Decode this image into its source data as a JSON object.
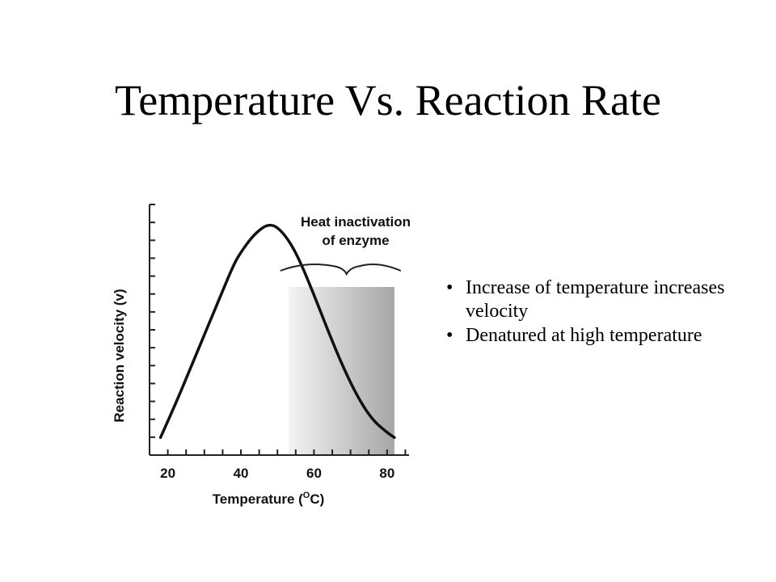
{
  "slide": {
    "title": "Temperature Vs. Reaction Rate",
    "bullets": [
      "Increase of  temperature increases velocity",
      "Denatured at high temperature"
    ]
  },
  "chart_data": {
    "type": "line",
    "xlabel": "Temperature (",
    "xlabel_superscript": "O",
    "xlabel_suffix": "C)",
    "ylabel": "Reaction velocity (v)",
    "annotation": [
      "Heat inactivation",
      "of enzyme"
    ],
    "x_ticks": [
      20,
      40,
      60,
      80
    ],
    "xlim": [
      15,
      86
    ],
    "ylim": [
      0,
      1
    ],
    "shaded_region": {
      "x_start": 53,
      "x_end": 82,
      "label_ref": "annotation"
    },
    "series": [
      {
        "x": [
          18,
          22,
          26,
          30,
          34,
          38,
          40,
          43,
          46,
          48,
          50,
          53,
          56,
          60,
          64,
          68,
          72,
          76,
          80,
          82
        ],
        "y": [
          0.07,
          0.2,
          0.34,
          0.48,
          0.62,
          0.76,
          0.81,
          0.87,
          0.91,
          0.92,
          0.91,
          0.86,
          0.78,
          0.64,
          0.49,
          0.35,
          0.23,
          0.14,
          0.09,
          0.07
        ]
      }
    ],
    "colors": {
      "line": "#111111",
      "shade_dark": "#a6a6a6",
      "shade_light": "#f4f4f4"
    }
  }
}
